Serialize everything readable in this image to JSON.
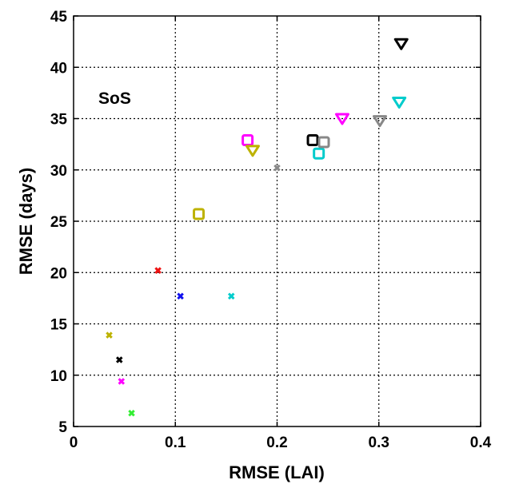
{
  "chart_data": {
    "type": "scatter",
    "title": "",
    "xlabel": "RMSE (LAI)",
    "ylabel": "RMSE (days)",
    "annotation": "SoS",
    "xlim": [
      0,
      0.4
    ],
    "ylim": [
      5,
      45
    ],
    "x_ticks": [
      "0",
      "0.1",
      "0.2",
      "0.3",
      "0.4"
    ],
    "y_ticks": [
      "5",
      "10",
      "15",
      "20",
      "25",
      "30",
      "35",
      "40",
      "45"
    ],
    "grid": true,
    "legend": "none",
    "series": [
      {
        "marker": "x",
        "points": [
          {
            "x": 0.035,
            "y": 13.9,
            "color": "#bdb200"
          },
          {
            "x": 0.045,
            "y": 11.5,
            "color": "#000000"
          },
          {
            "x": 0.047,
            "y": 9.4,
            "color": "#ff00ff"
          },
          {
            "x": 0.057,
            "y": 6.3,
            "color": "#33ee33"
          },
          {
            "x": 0.083,
            "y": 20.2,
            "color": "#ee1111"
          },
          {
            "x": 0.105,
            "y": 17.7,
            "color": "#1111ee"
          },
          {
            "x": 0.155,
            "y": 17.7,
            "color": "#00cccc"
          },
          {
            "x": 0.2,
            "y": 30.2,
            "color": "#888888"
          }
        ]
      },
      {
        "marker": "square",
        "points": [
          {
            "x": 0.123,
            "y": 25.7,
            "color": "#bdb200"
          },
          {
            "x": 0.171,
            "y": 32.9,
            "color": "#ff00ff"
          },
          {
            "x": 0.235,
            "y": 32.9,
            "color": "#000000"
          },
          {
            "x": 0.241,
            "y": 31.6,
            "color": "#00cccc"
          },
          {
            "x": 0.246,
            "y": 32.7,
            "color": "#888888"
          }
        ]
      },
      {
        "marker": "triangle-down",
        "points": [
          {
            "x": 0.176,
            "y": 31.9,
            "color": "#bdb200"
          },
          {
            "x": 0.264,
            "y": 35.0,
            "color": "#ff00ff"
          },
          {
            "x": 0.301,
            "y": 34.8,
            "color": "#888888"
          },
          {
            "x": 0.32,
            "y": 36.6,
            "color": "#00cccc"
          },
          {
            "x": 0.322,
            "y": 42.3,
            "color": "#000000"
          }
        ]
      }
    ]
  }
}
